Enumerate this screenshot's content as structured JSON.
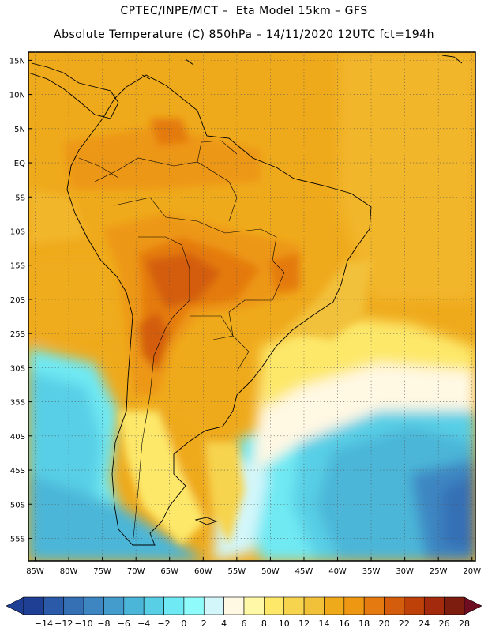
{
  "header": {
    "line1": "CPTEC/INPE/MCT –  Eta Model 15km – GFS",
    "line2": "Absolute Temperature (C) 850hPa – 14/11/2020 12UTC fct=194h"
  },
  "map": {
    "lat_labels": [
      "15N",
      "10N",
      "5N",
      "EQ",
      "5S",
      "10S",
      "15S",
      "20S",
      "25S",
      "30S",
      "35S",
      "40S",
      "45S",
      "50S",
      "55S"
    ],
    "lon_labels": [
      "85W",
      "80W",
      "75W",
      "70W",
      "65W",
      "60W",
      "55W",
      "50W",
      "45W",
      "40W",
      "35W",
      "30W",
      "25W",
      "20W"
    ],
    "graticule_style": "dotted",
    "continent_outline_color": "#000000"
  },
  "colorbar": {
    "tick_labels": [
      "-14",
      "-12",
      "-10",
      "-8",
      "-6",
      "-4",
      "-2",
      "0",
      "2",
      "4",
      "6",
      "8",
      "10",
      "12",
      "14",
      "16",
      "18",
      "20",
      "22",
      "24",
      "26",
      "28"
    ],
    "colors": [
      "#1e3f93",
      "#2a5aa8",
      "#3570b5",
      "#3d86c2",
      "#449ccc",
      "#4cb6d8",
      "#59cfe6",
      "#6fe9f3",
      "#8ffbfb",
      "#d3f6fa",
      "#fff8e3",
      "#fff8a6",
      "#fde86a",
      "#f7d44e",
      "#f2c13a",
      "#efaa1c",
      "#ed9712",
      "#e47a10",
      "#d35d0c",
      "#bd4109",
      "#a32a0c",
      "#7c1d0f",
      "#6e0c22"
    ],
    "under_color": "#1e3f93",
    "over_color": "#6e0c22"
  }
}
